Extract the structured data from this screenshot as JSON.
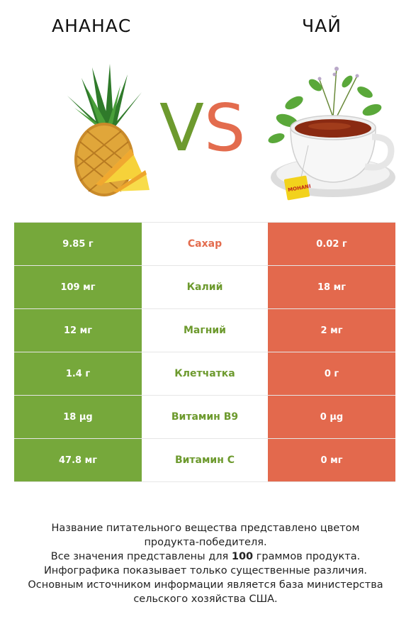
{
  "header": {
    "left_title": "АНАНАС",
    "right_title": "ЧАЙ",
    "vs_v": "V",
    "vs_s": "S"
  },
  "colors": {
    "green": "#76a83b",
    "red": "#e3694d"
  },
  "rows": [
    {
      "left": "9.85 г",
      "nutrient": "Сахар",
      "right": "0.02 г",
      "winner": "red"
    },
    {
      "left": "109 мг",
      "nutrient": "Калий",
      "right": "18 мг",
      "winner": "green"
    },
    {
      "left": "12 мг",
      "nutrient": "Магний",
      "right": "2 мг",
      "winner": "green"
    },
    {
      "left": "1.4 г",
      "nutrient": "Клетчатка",
      "right": "0 г",
      "winner": "green"
    },
    {
      "left": "18 µg",
      "nutrient": "Витамин B9",
      "right": "0 µg",
      "winner": "green"
    },
    {
      "left": "47.8 мг",
      "nutrient": "Витамин C",
      "right": "0 мг",
      "winner": "green"
    }
  ],
  "footer": {
    "line1": "Название питательного вещества представлено цветом",
    "line2": "продукта-победителя.",
    "line3_pre": "Все значения представлены для ",
    "line3_num": "100",
    "line3_post": " граммов продукта.",
    "line4": "Инфографика показывает только существенные различия.",
    "line5": "Основным источником информации является база министерства",
    "line6": "сельского хозяйства США."
  },
  "tea_brand": "MOHANI"
}
